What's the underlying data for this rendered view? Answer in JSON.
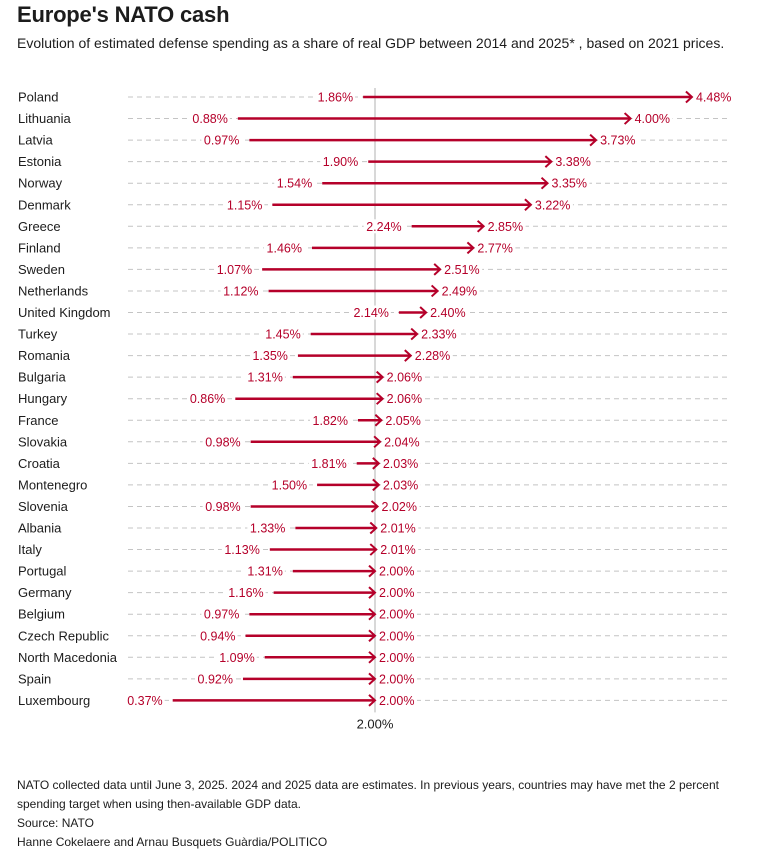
{
  "header": {
    "title": "Europe's NATO cash",
    "subtitle": "Evolution of estimated defense spending as a share of real GDP between 2014 and 2025* , based on 2021 prices."
  },
  "chart_data": {
    "type": "arrow-dumbbell",
    "title": "Europe's NATO cash",
    "subtitle": "Evolution of estimated defense spending as a share of real GDP between 2014 and 2025* , based on 2021 prices.",
    "xlabel": "",
    "ylabel": "",
    "unit": "% of GDP",
    "xlim": [
      0,
      4.8
    ],
    "reference_line": {
      "value": 2.0,
      "label": "2.00%"
    },
    "grid": "dashed horizontal per row",
    "series": [
      {
        "name": "2014",
        "role": "start"
      },
      {
        "name": "2025",
        "role": "end"
      }
    ],
    "categories": [
      "Poland",
      "Lithuania",
      "Latvia",
      "Estonia",
      "Norway",
      "Denmark",
      "Greece",
      "Finland",
      "Sweden",
      "Netherlands",
      "United Kingdom",
      "Turkey",
      "Romania",
      "Bulgaria",
      "Hungary",
      "France",
      "Slovakia",
      "Croatia",
      "Montenegro",
      "Slovenia",
      "Albania",
      "Italy",
      "Portugal",
      "Germany",
      "Belgium",
      "Czech Republic",
      "North Macedonia",
      "Spain",
      "Luxembourg"
    ],
    "rows": [
      {
        "country": "Poland",
        "start": 1.86,
        "end": 4.48,
        "start_label": "1.86%",
        "end_label": "4.48%"
      },
      {
        "country": "Lithuania",
        "start": 0.88,
        "end": 4.0,
        "start_label": "0.88%",
        "end_label": "4.00%"
      },
      {
        "country": "Latvia",
        "start": 0.97,
        "end": 3.73,
        "start_label": "0.97%",
        "end_label": "3.73%"
      },
      {
        "country": "Estonia",
        "start": 1.9,
        "end": 3.38,
        "start_label": "1.90%",
        "end_label": "3.38%"
      },
      {
        "country": "Norway",
        "start": 1.54,
        "end": 3.35,
        "start_label": "1.54%",
        "end_label": "3.35%"
      },
      {
        "country": "Denmark",
        "start": 1.15,
        "end": 3.22,
        "start_label": "1.15%",
        "end_label": "3.22%"
      },
      {
        "country": "Greece",
        "start": 2.24,
        "end": 2.85,
        "start_label": "2.24%",
        "end_label": "2.85%"
      },
      {
        "country": "Finland",
        "start": 1.46,
        "end": 2.77,
        "start_label": "1.46%",
        "end_label": "2.77%"
      },
      {
        "country": "Sweden",
        "start": 1.07,
        "end": 2.51,
        "start_label": "1.07%",
        "end_label": "2.51%"
      },
      {
        "country": "Netherlands",
        "start": 1.12,
        "end": 2.49,
        "start_label": "1.12%",
        "end_label": "2.49%"
      },
      {
        "country": "United Kingdom",
        "start": 2.14,
        "end": 2.4,
        "start_label": "2.14%",
        "end_label": "2.40%"
      },
      {
        "country": "Turkey",
        "start": 1.45,
        "end": 2.33,
        "start_label": "1.45%",
        "end_label": "2.33%"
      },
      {
        "country": "Romania",
        "start": 1.35,
        "end": 2.28,
        "start_label": "1.35%",
        "end_label": "2.28%"
      },
      {
        "country": "Bulgaria",
        "start": 1.31,
        "end": 2.06,
        "start_label": "1.31%",
        "end_label": "2.06%"
      },
      {
        "country": "Hungary",
        "start": 0.86,
        "end": 2.06,
        "start_label": "0.86%",
        "end_label": "2.06%"
      },
      {
        "country": "France",
        "start": 1.82,
        "end": 2.05,
        "start_label": "1.82%",
        "end_label": "2.05%"
      },
      {
        "country": "Slovakia",
        "start": 0.98,
        "end": 2.04,
        "start_label": "0.98%",
        "end_label": "2.04%"
      },
      {
        "country": "Croatia",
        "start": 1.81,
        "end": 2.03,
        "start_label": "1.81%",
        "end_label": "2.03%"
      },
      {
        "country": "Montenegro",
        "start": 1.5,
        "end": 2.03,
        "start_label": "1.50%",
        "end_label": "2.03%"
      },
      {
        "country": "Slovenia",
        "start": 0.98,
        "end": 2.02,
        "start_label": "0.98%",
        "end_label": "2.02%"
      },
      {
        "country": "Albania",
        "start": 1.33,
        "end": 2.01,
        "start_label": "1.33%",
        "end_label": "2.01%"
      },
      {
        "country": "Italy",
        "start": 1.13,
        "end": 2.01,
        "start_label": "1.13%",
        "end_label": "2.01%"
      },
      {
        "country": "Portugal",
        "start": 1.31,
        "end": 2.0,
        "start_label": "1.31%",
        "end_label": "2.00%"
      },
      {
        "country": "Germany",
        "start": 1.16,
        "end": 2.0,
        "start_label": "1.16%",
        "end_label": "2.00%"
      },
      {
        "country": "Belgium",
        "start": 0.97,
        "end": 2.0,
        "start_label": "0.97%",
        "end_label": "2.00%"
      },
      {
        "country": "Czech Republic",
        "start": 0.94,
        "end": 2.0,
        "start_label": "0.94%",
        "end_label": "2.00%"
      },
      {
        "country": "North Macedonia",
        "start": 1.09,
        "end": 2.0,
        "start_label": "1.09%",
        "end_label": "2.00%"
      },
      {
        "country": "Spain",
        "start": 0.92,
        "end": 2.0,
        "start_label": "0.92%",
        "end_label": "2.00%"
      },
      {
        "country": "Luxembourg",
        "start": 0.37,
        "end": 2.0,
        "start_label": "0.37%",
        "end_label": "2.00%"
      }
    ]
  },
  "colors": {
    "arrow": "#b5002a",
    "grid": "#c4c4c4",
    "reference_line": "#b0b0b0",
    "text": "#1c1c1c"
  },
  "footer": {
    "note": "NATO collected data until June 3, 2025. 2024 and 2025 data are estimates. In previous years, countries may have met the 2 percent spending target when using then-available GDP data.",
    "source": "Source: NATO",
    "credit": "Hanne Cokelaere and Arnau Busquets Guàrdia/POLITICO"
  }
}
